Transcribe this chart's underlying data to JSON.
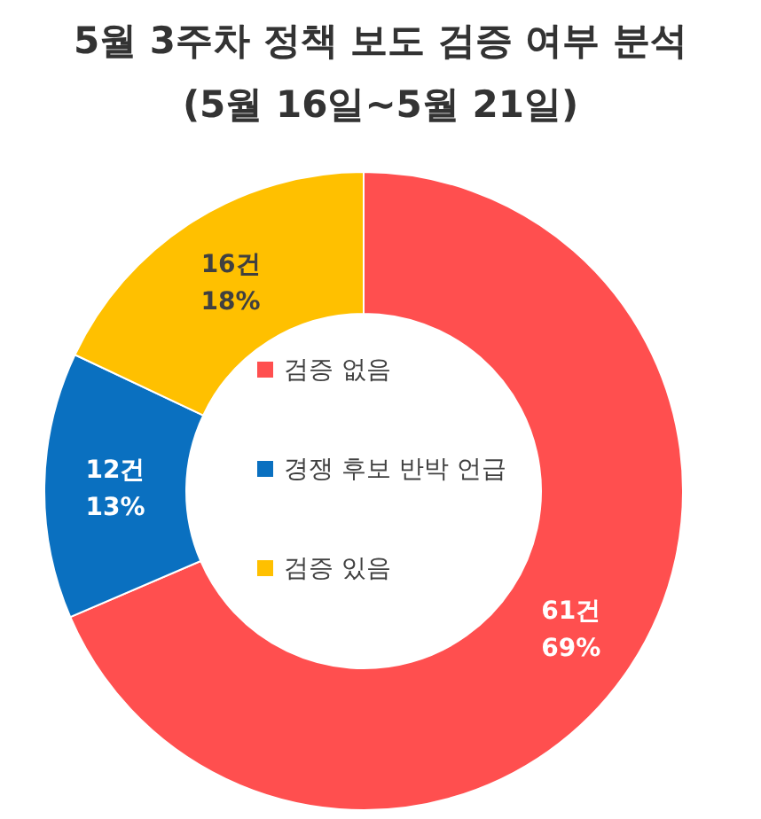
{
  "chart_data": {
    "type": "donut",
    "title": "5월 3주차 정책 보도  검증 여부 분석",
    "subtitle": "(5월 16일~5월 21일)",
    "categories": [
      "검증 없음",
      "경쟁 후보 반박 언급",
      "검증 있음"
    ],
    "values": [
      61,
      12,
      16
    ],
    "value_labels": [
      "61건\n69%",
      "12건\n13%",
      "16건\n18%"
    ],
    "colors": [
      "#ff4f4f",
      "#0a70c0",
      "#ffc000"
    ],
    "legend": "center"
  }
}
